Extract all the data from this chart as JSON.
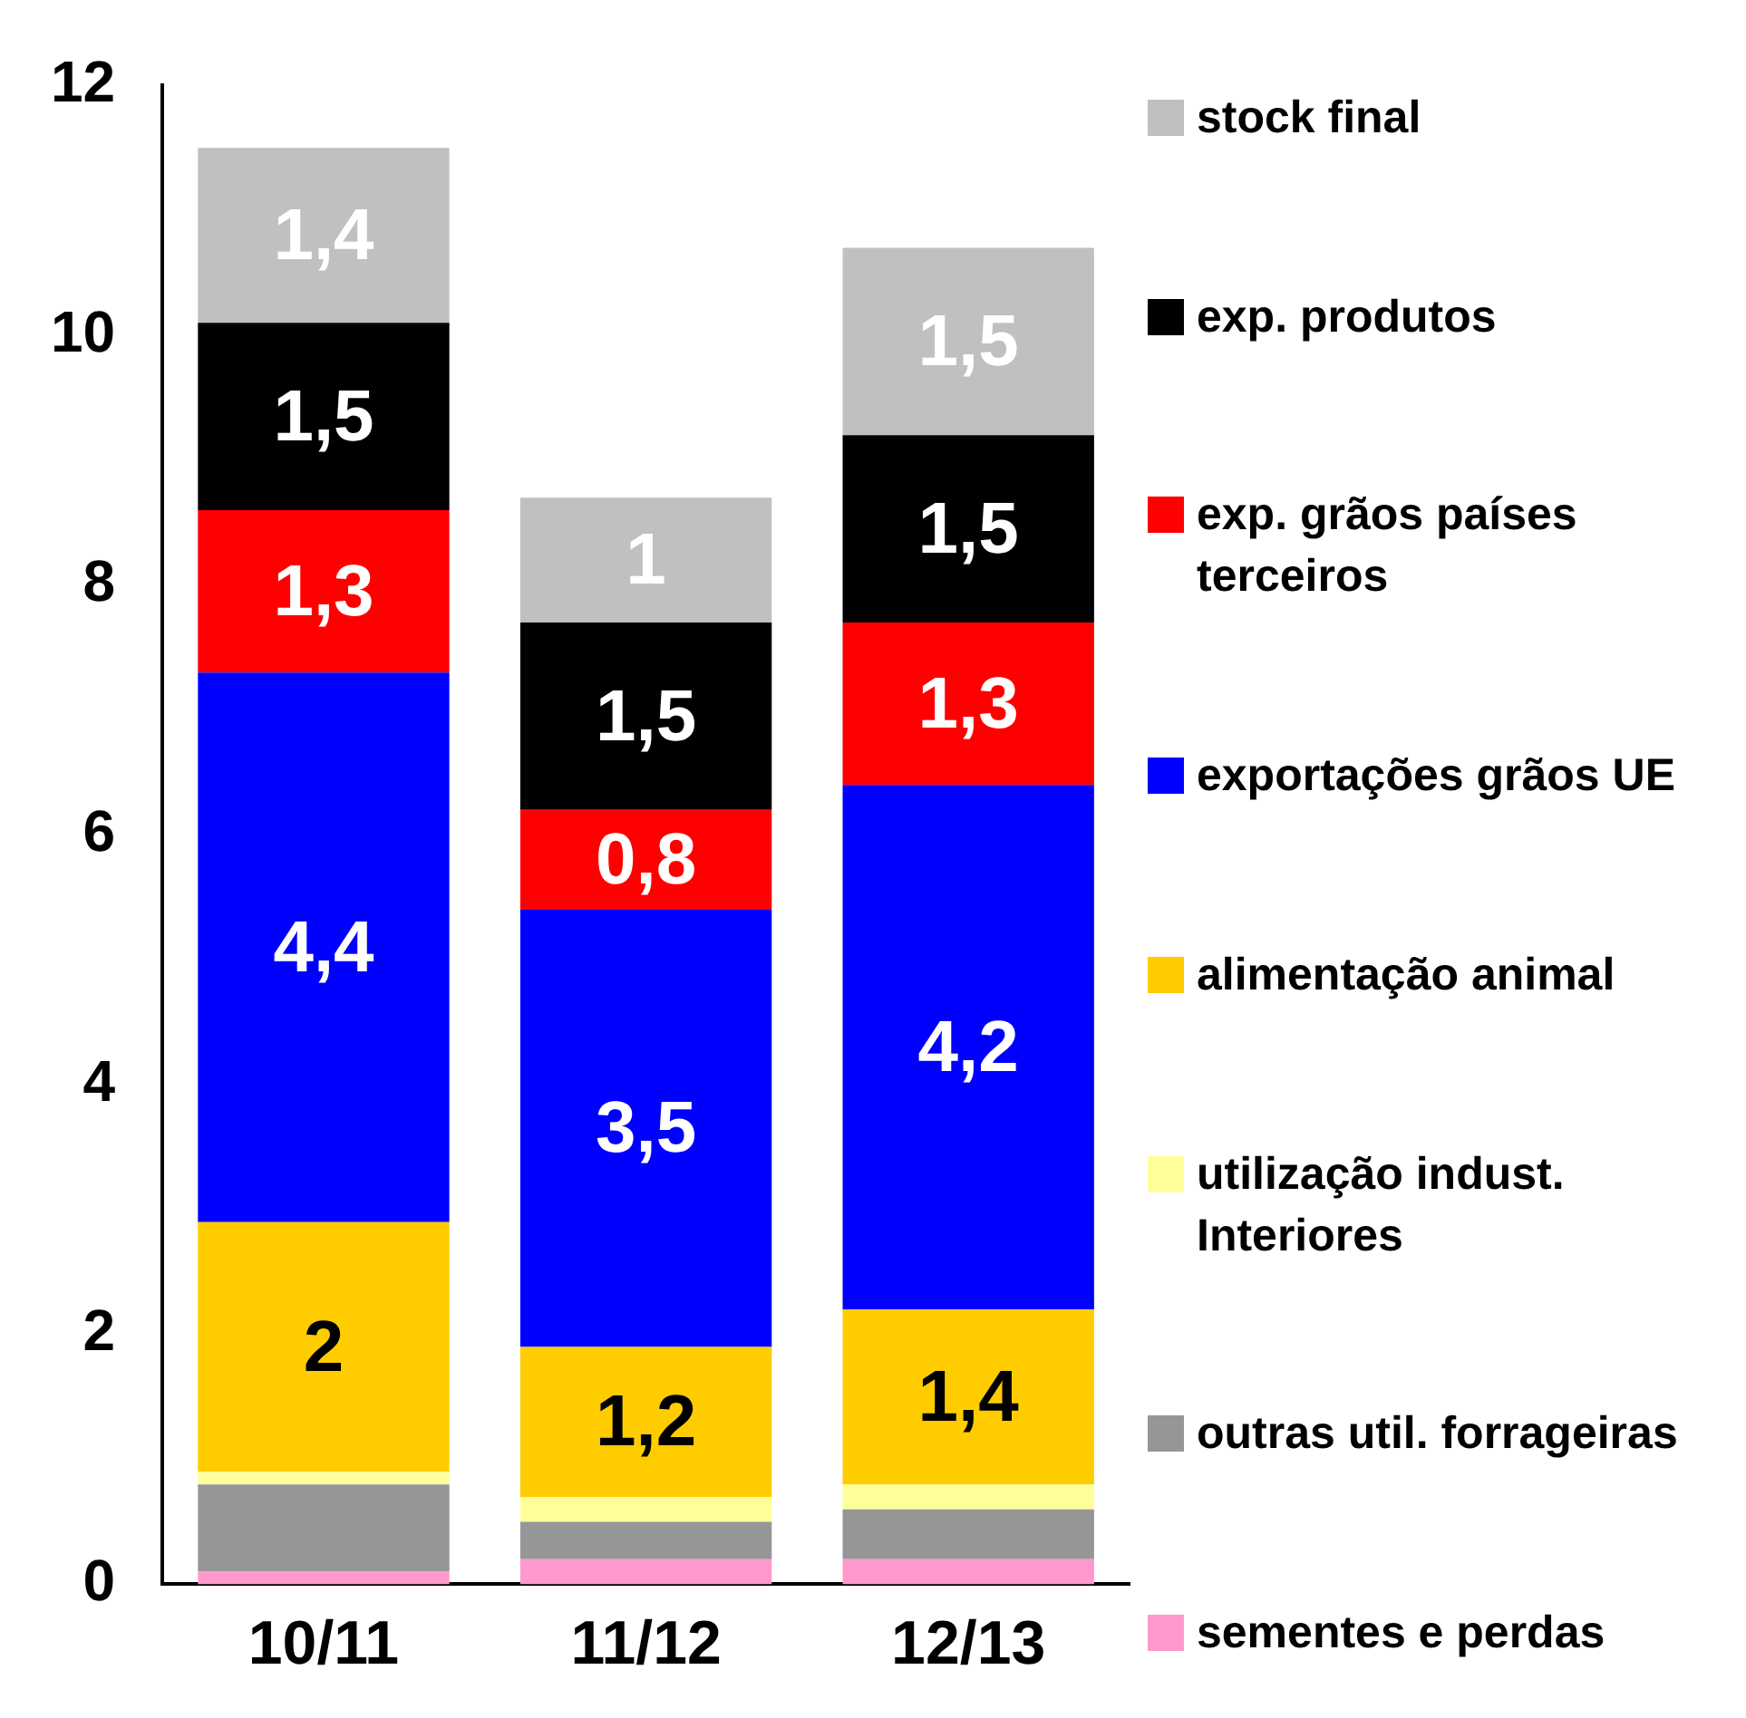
{
  "chart_data": {
    "type": "bar",
    "stacked": true,
    "categories": [
      "10/11",
      "11/12",
      "12/13"
    ],
    "series": [
      {
        "name": "sementes e perdas",
        "color": "#ff99cc",
        "values": [
          0.1,
          0.2,
          0.2
        ],
        "value_labels": [
          null,
          null,
          null
        ]
      },
      {
        "name": "outras util. forrageiras",
        "color": "#969696",
        "values": [
          0.7,
          0.3,
          0.4
        ],
        "value_labels": [
          null,
          null,
          null
        ]
      },
      {
        "name": "utilização indust. Interiores",
        "color": "#ffff99",
        "values": [
          0.1,
          0.2,
          0.2
        ],
        "value_labels": [
          null,
          null,
          null
        ]
      },
      {
        "name": "alimentação animal",
        "color": "#ffcc00",
        "values": [
          2,
          1.2,
          1.4
        ],
        "value_labels": [
          "2",
          "1,2",
          "1,4"
        ]
      },
      {
        "name": "exportações grãos UE",
        "color": "#0000ff",
        "values": [
          4.4,
          3.5,
          4.2
        ],
        "value_labels": [
          "4,4",
          "3,5",
          "4,2"
        ]
      },
      {
        "name": "exp. grãos países terceiros",
        "color": "#ff0000",
        "values": [
          1.3,
          0.8,
          1.3
        ],
        "value_labels": [
          "1,3",
          "0,8",
          "1,3"
        ]
      },
      {
        "name": "exp. produtos",
        "color": "#000000",
        "values": [
          1.5,
          1.5,
          1.5
        ],
        "value_labels": [
          "1,5",
          "1,5",
          "1,5"
        ]
      },
      {
        "name": "stock final",
        "color": "#c0c0c0",
        "values": [
          1.4,
          1,
          1.5
        ],
        "value_labels": [
          "1,4",
          "1",
          "1,5"
        ]
      }
    ],
    "ylim": [
      0,
      12
    ],
    "yticks": [
      0,
      2,
      4,
      6,
      8,
      10,
      12
    ],
    "grid": false,
    "legend": "right"
  }
}
